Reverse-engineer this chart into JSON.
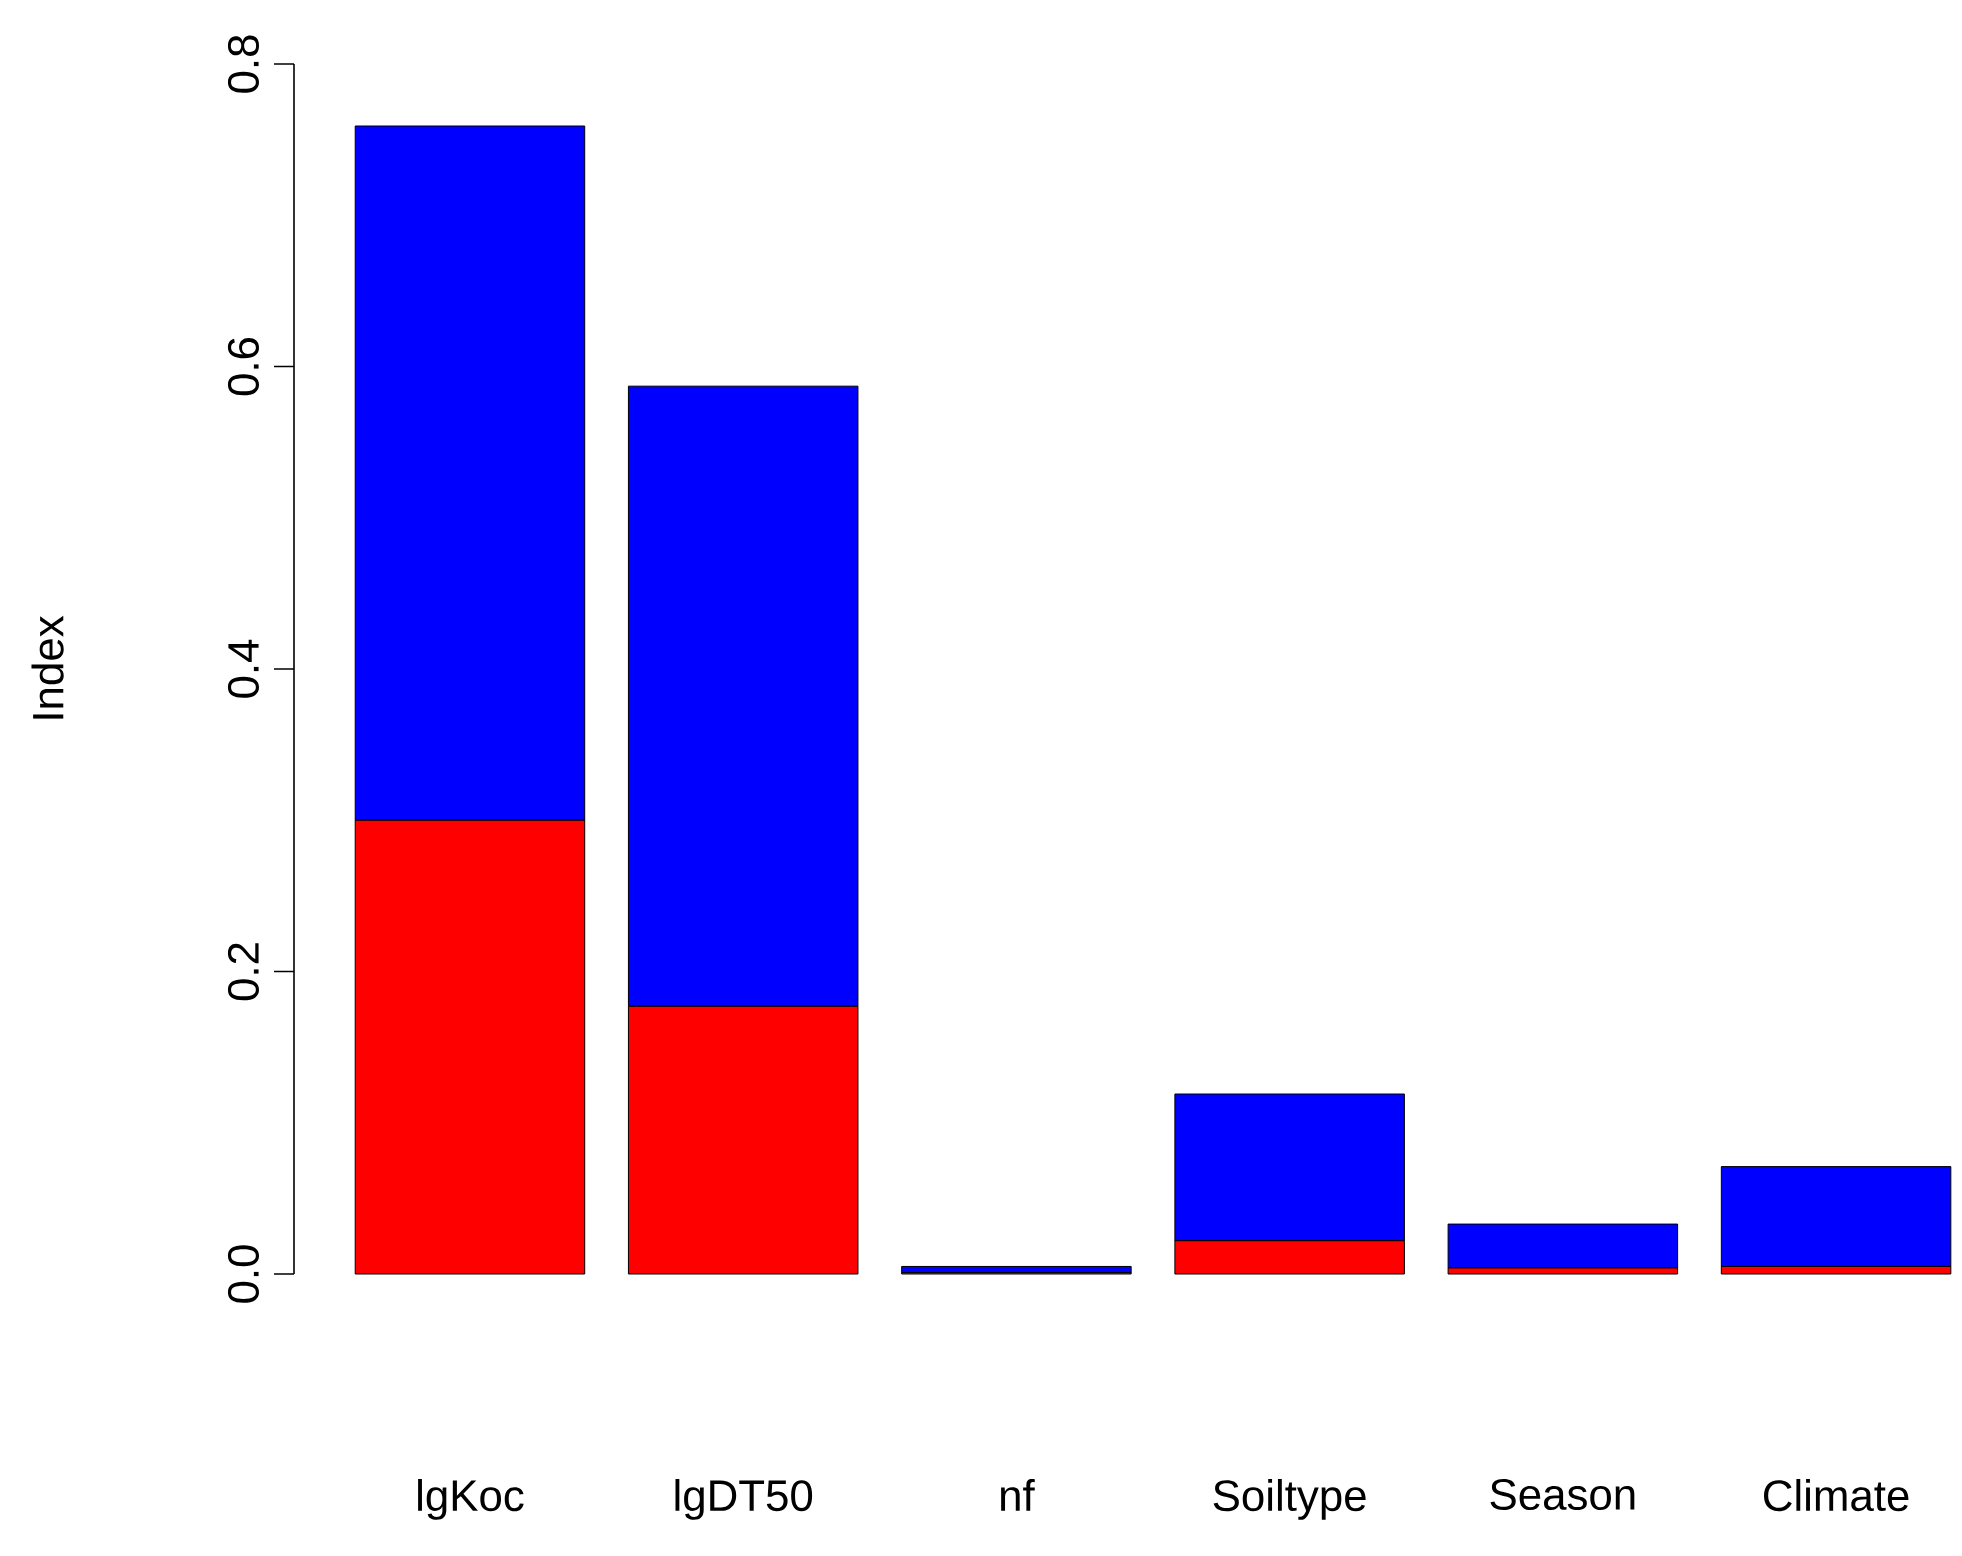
{
  "chart_data": {
    "type": "bar",
    "stacked": true,
    "ylabel": "Index",
    "categories": [
      "lgKoc",
      "lgDT50",
      "nf",
      "Soiltype",
      "Season",
      "Climate"
    ],
    "series": [
      {
        "color": "#ff0000",
        "values": [
          0.3,
          0.177,
          0.001,
          0.022,
          0.004,
          0.005
        ]
      },
      {
        "color": "#0000ff",
        "values": [
          0.459,
          0.41,
          0.004,
          0.097,
          0.029,
          0.066
        ]
      }
    ],
    "ylim": [
      0,
      0.8
    ],
    "yticks": [
      {
        "value": 0,
        "label": "0.0"
      },
      {
        "value": 0.2,
        "label": "0.2"
      },
      {
        "value": 0.4,
        "label": "0.4"
      },
      {
        "value": 0.6,
        "label": "0.6"
      },
      {
        "value": 0.8,
        "label": "0.8"
      }
    ]
  }
}
